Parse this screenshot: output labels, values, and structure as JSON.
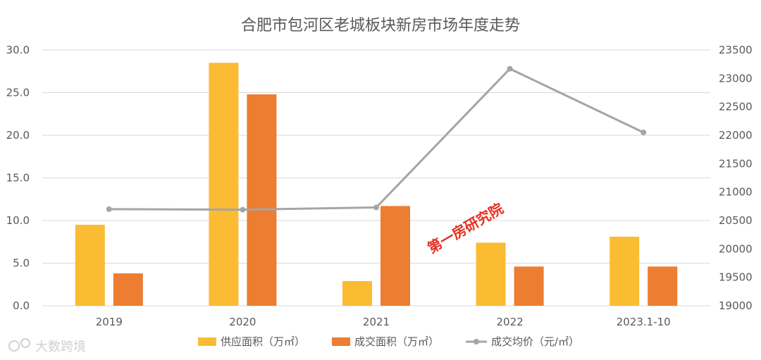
{
  "chart_data": {
    "type": "bar",
    "title": "合肥市包河区老城板块新房市场年度走势",
    "categories": [
      "2019",
      "2020",
      "2021",
      "2022",
      "2023.1-10"
    ],
    "series": [
      {
        "name": "供应面积（万㎡）",
        "type": "bar",
        "axis": "left",
        "color": "#fbbc33",
        "values": [
          9.5,
          28.5,
          2.9,
          7.4,
          8.1
        ]
      },
      {
        "name": "成交面积（万㎡）",
        "type": "bar",
        "axis": "left",
        "color": "#ed7d31",
        "values": [
          3.8,
          24.8,
          11.7,
          4.6,
          4.6
        ]
      },
      {
        "name": "成交均价（元/㎡）",
        "type": "line",
        "axis": "right",
        "color": "#a5a5a5",
        "values": [
          20700,
          20690,
          20730,
          23170,
          22050
        ]
      }
    ],
    "ylim_left": [
      0,
      30
    ],
    "ylim_right": [
      19000,
      23500
    ],
    "yticks_left": [
      "0.0",
      "5.0",
      "10.0",
      "15.0",
      "20.0",
      "25.0",
      "30.0"
    ],
    "yticks_right": [
      "19000",
      "19500",
      "20000",
      "20500",
      "21000",
      "21500",
      "22000",
      "22500",
      "23000",
      "23500"
    ],
    "grid": true,
    "legend_position": "bottom"
  },
  "watermark": "第一房研究院",
  "logo_text": "大数跨境"
}
